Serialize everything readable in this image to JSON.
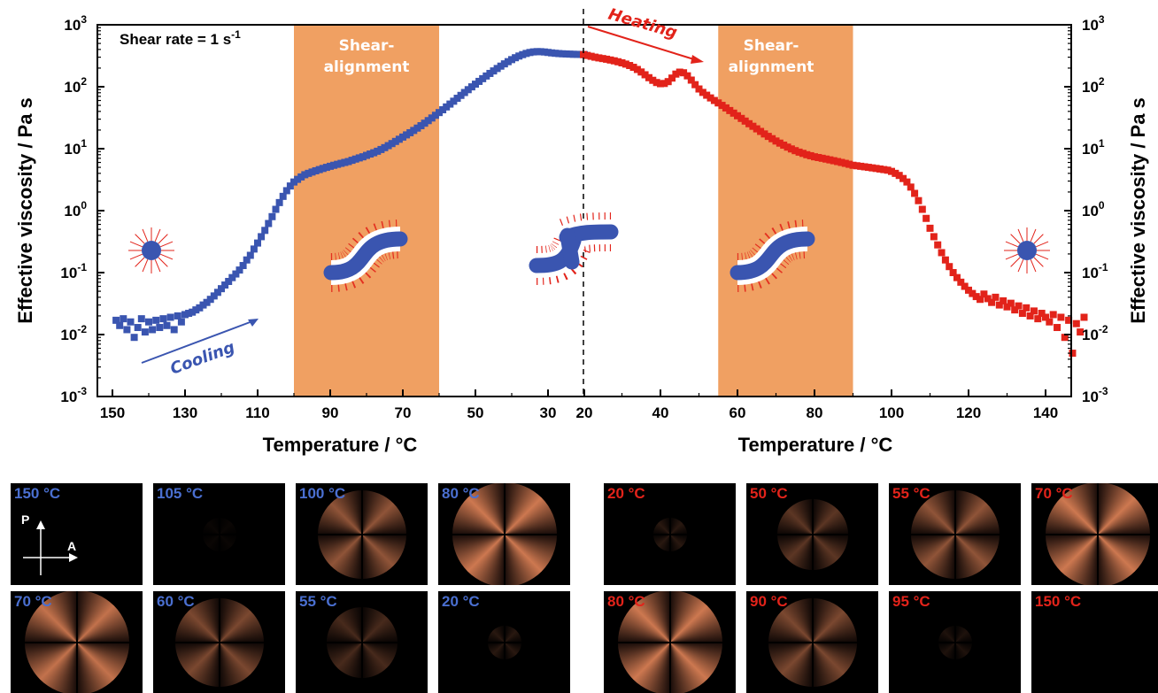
{
  "chart_data": {
    "type": "scatter",
    "ylabel_left": "Effective viscosity / Pa s",
    "ylabel_right": "Effective viscosity / Pa s",
    "xlabel_cooling": "Temperature / °C",
    "xlabel_heating": "Temperature / °C",
    "yscale": "log",
    "ylim": [
      0.001,
      1000
    ],
    "y_ticks": [
      {
        "base": "10",
        "exp": "3"
      },
      {
        "base": "10",
        "exp": "2"
      },
      {
        "base": "10",
        "exp": "1"
      },
      {
        "base": "10",
        "exp": "0"
      },
      {
        "base": "10",
        "exp": "-1"
      },
      {
        "base": "10",
        "exp": "-2"
      },
      {
        "base": "10",
        "exp": "-3"
      }
    ],
    "x_ticks_cooling": [
      "150",
      "130",
      "110",
      "90",
      "70",
      "50",
      "30",
      "20"
    ],
    "x_ticks_heating": [
      "40",
      "60",
      "80",
      "100",
      "120",
      "140"
    ],
    "annotations": {
      "shear_rate": "Shear rate = 1 s",
      "shear_rate_sup": "-1",
      "shear_alignment_left": [
        "Shear-",
        "alignment"
      ],
      "shear_alignment_right": [
        "Shear-",
        "alignment"
      ],
      "cooling": "Cooling",
      "heating": "Heating"
    },
    "colors": {
      "cooling": "#3a55b0",
      "heating": "#e2231a",
      "shear_region": "#f0a062",
      "axis": "#000000"
    },
    "shear_regions": [
      {
        "series": "cooling",
        "from_T": 100,
        "to_T": 60
      },
      {
        "series": "heating",
        "from_T": 55,
        "to_T": 90
      }
    ],
    "series": [
      {
        "id": "cooling",
        "temperature_direction": "decreasing",
        "points": [
          [
            149,
            0.017
          ],
          [
            148,
            0.014
          ],
          [
            147,
            0.018
          ],
          [
            146,
            0.012
          ],
          [
            145,
            0.016
          ],
          [
            144,
            0.009
          ],
          [
            143,
            0.013
          ],
          [
            142,
            0.018
          ],
          [
            141,
            0.011
          ],
          [
            140,
            0.016
          ],
          [
            139,
            0.012
          ],
          [
            138,
            0.017
          ],
          [
            137,
            0.013
          ],
          [
            136,
            0.018
          ],
          [
            135,
            0.014
          ],
          [
            134,
            0.019
          ],
          [
            133,
            0.012
          ],
          [
            132,
            0.02
          ],
          [
            131,
            0.016
          ],
          [
            130,
            0.021
          ],
          [
            129,
            0.022
          ],
          [
            128,
            0.023
          ],
          [
            127,
            0.025
          ],
          [
            126,
            0.027
          ],
          [
            125,
            0.03
          ],
          [
            124,
            0.033
          ],
          [
            123,
            0.037
          ],
          [
            122,
            0.042
          ],
          [
            121,
            0.048
          ],
          [
            120,
            0.055
          ],
          [
            119,
            0.063
          ],
          [
            118,
            0.072
          ],
          [
            117,
            0.083
          ],
          [
            116,
            0.095
          ],
          [
            115,
            0.11
          ],
          [
            114,
            0.13
          ],
          [
            113,
            0.16
          ],
          [
            112,
            0.19
          ],
          [
            111,
            0.24
          ],
          [
            110,
            0.3
          ],
          [
            109,
            0.38
          ],
          [
            108,
            0.48
          ],
          [
            107,
            0.62
          ],
          [
            106,
            0.8
          ],
          [
            105,
            1.05
          ],
          [
            104,
            1.35
          ],
          [
            103,
            1.7
          ],
          [
            102,
            2.1
          ],
          [
            101,
            2.5
          ],
          [
            100,
            2.9
          ],
          [
            99,
            3.2
          ],
          [
            98,
            3.5
          ],
          [
            97,
            3.8
          ],
          [
            96,
            4.0
          ],
          [
            95,
            4.2
          ],
          [
            94,
            4.4
          ],
          [
            93,
            4.6
          ],
          [
            92,
            4.8
          ],
          [
            91,
            5.0
          ],
          [
            90,
            5.2
          ],
          [
            89,
            5.4
          ],
          [
            88,
            5.6
          ],
          [
            87,
            5.8
          ],
          [
            86,
            6.0
          ],
          [
            85,
            6.2
          ],
          [
            84,
            6.5
          ],
          [
            83,
            6.8
          ],
          [
            82,
            7.1
          ],
          [
            81,
            7.4
          ],
          [
            80,
            7.8
          ],
          [
            79,
            8.2
          ],
          [
            78,
            8.6
          ],
          [
            77,
            9.1
          ],
          [
            76,
            9.7
          ],
          [
            75,
            10.4
          ],
          [
            74,
            11.2
          ],
          [
            73,
            12.1
          ],
          [
            72,
            13.1
          ],
          [
            71,
            14.2
          ],
          [
            70,
            15.4
          ],
          [
            69,
            16.7
          ],
          [
            68,
            18.1
          ],
          [
            67,
            19.7
          ],
          [
            66,
            21.5
          ],
          [
            65,
            23.5
          ],
          [
            64,
            25.8
          ],
          [
            63,
            28.4
          ],
          [
            62,
            31.3
          ],
          [
            61,
            34.6
          ],
          [
            60,
            38.3
          ],
          [
            59,
            42.5
          ],
          [
            58,
            47.2
          ],
          [
            57,
            52.5
          ],
          [
            56,
            58.4
          ],
          [
            55,
            65.1
          ],
          [
            54,
            72.5
          ],
          [
            53,
            80.7
          ],
          [
            52,
            89.7
          ],
          [
            51,
            99.6
          ],
          [
            50,
            110
          ],
          [
            49,
            122
          ],
          [
            48,
            135
          ],
          [
            47,
            149
          ],
          [
            46,
            164
          ],
          [
            45,
            180
          ],
          [
            44,
            197
          ],
          [
            43,
            215
          ],
          [
            42,
            234
          ],
          [
            41,
            254
          ],
          [
            40,
            274
          ],
          [
            39,
            294
          ],
          [
            38,
            313
          ],
          [
            37,
            330
          ],
          [
            36,
            345
          ],
          [
            35,
            357
          ],
          [
            34,
            365
          ],
          [
            33,
            369
          ],
          [
            32,
            368
          ],
          [
            31,
            364
          ],
          [
            30,
            358
          ],
          [
            29,
            352
          ],
          [
            28,
            347
          ],
          [
            27,
            343
          ],
          [
            26,
            340
          ],
          [
            25,
            338
          ],
          [
            24,
            336
          ],
          [
            23,
            334
          ],
          [
            22,
            333
          ],
          [
            21,
            332
          ],
          [
            20,
            330
          ]
        ]
      },
      {
        "id": "heating",
        "temperature_direction": "increasing",
        "points": [
          [
            20,
            330
          ],
          [
            21,
            320
          ],
          [
            22,
            310
          ],
          [
            23,
            300
          ],
          [
            24,
            292
          ],
          [
            25,
            285
          ],
          [
            26,
            278
          ],
          [
            27,
            270
          ],
          [
            28,
            262
          ],
          [
            29,
            253
          ],
          [
            30,
            243
          ],
          [
            31,
            232
          ],
          [
            32,
            220
          ],
          [
            33,
            206
          ],
          [
            34,
            190
          ],
          [
            35,
            173
          ],
          [
            36,
            156
          ],
          [
            37,
            140
          ],
          [
            38,
            127
          ],
          [
            39,
            117
          ],
          [
            40,
            112
          ],
          [
            41,
            113
          ],
          [
            42,
            121
          ],
          [
            43,
            138
          ],
          [
            44,
            160
          ],
          [
            45,
            172
          ],
          [
            46,
            168
          ],
          [
            47,
            150
          ],
          [
            48,
            128
          ],
          [
            49,
            108
          ],
          [
            50,
            92
          ],
          [
            51,
            81
          ],
          [
            52,
            73
          ],
          [
            53,
            66
          ],
          [
            54,
            60
          ],
          [
            55,
            54.8
          ],
          [
            56,
            50
          ],
          [
            57,
            45.5
          ],
          [
            58,
            41.3
          ],
          [
            59,
            37.5
          ],
          [
            60,
            34
          ],
          [
            61,
            30.8
          ],
          [
            62,
            27.9
          ],
          [
            63,
            25.3
          ],
          [
            64,
            23
          ],
          [
            65,
            20.9
          ],
          [
            66,
            19
          ],
          [
            67,
            17.3
          ],
          [
            68,
            15.8
          ],
          [
            69,
            14.5
          ],
          [
            70,
            13.3
          ],
          [
            71,
            12.3
          ],
          [
            72,
            11.4
          ],
          [
            73,
            10.6
          ],
          [
            74,
            9.9
          ],
          [
            75,
            9.3
          ],
          [
            76,
            8.8
          ],
          [
            77,
            8.4
          ],
          [
            78,
            8.0
          ],
          [
            79,
            7.7
          ],
          [
            80,
            7.4
          ],
          [
            81,
            7.2
          ],
          [
            82,
            7.0
          ],
          [
            83,
            6.8
          ],
          [
            84,
            6.6
          ],
          [
            85,
            6.4
          ],
          [
            86,
            6.2
          ],
          [
            87,
            6.0
          ],
          [
            88,
            5.8
          ],
          [
            89,
            5.6
          ],
          [
            90,
            5.4
          ],
          [
            91,
            5.3
          ],
          [
            92,
            5.2
          ],
          [
            93,
            5.1
          ],
          [
            94,
            5.0
          ],
          [
            95,
            4.9
          ],
          [
            96,
            4.8
          ],
          [
            97,
            4.7
          ],
          [
            98,
            4.6
          ],
          [
            99,
            4.5
          ],
          [
            100,
            4.3
          ],
          [
            101,
            4.0
          ],
          [
            102,
            3.7
          ],
          [
            103,
            3.3
          ],
          [
            104,
            2.9
          ],
          [
            105,
            2.4
          ],
          [
            106,
            1.9
          ],
          [
            107,
            1.45
          ],
          [
            108,
            1.05
          ],
          [
            109,
            0.75
          ],
          [
            110,
            0.52
          ],
          [
            111,
            0.38
          ],
          [
            112,
            0.28
          ],
          [
            113,
            0.21
          ],
          [
            114,
            0.16
          ],
          [
            115,
            0.125
          ],
          [
            116,
            0.1
          ],
          [
            117,
            0.083
          ],
          [
            118,
            0.07
          ],
          [
            119,
            0.06
          ],
          [
            120,
            0.052
          ],
          [
            121,
            0.046
          ],
          [
            122,
            0.041
          ],
          [
            123,
            0.037
          ],
          [
            124,
            0.045
          ],
          [
            125,
            0.038
          ],
          [
            126,
            0.033
          ],
          [
            127,
            0.04
          ],
          [
            128,
            0.03
          ],
          [
            129,
            0.035
          ],
          [
            130,
            0.028
          ],
          [
            131,
            0.032
          ],
          [
            132,
            0.025
          ],
          [
            133,
            0.029
          ],
          [
            134,
            0.022
          ],
          [
            135,
            0.027
          ],
          [
            136,
            0.02
          ],
          [
            137,
            0.024
          ],
          [
            138,
            0.018
          ],
          [
            139,
            0.022
          ],
          [
            140,
            0.019
          ],
          [
            141,
            0.016
          ],
          [
            142,
            0.021
          ],
          [
            143,
            0.013
          ],
          [
            144,
            0.019
          ],
          [
            145,
            0.009
          ],
          [
            146,
            0.017
          ],
          [
            147,
            0.005
          ],
          [
            148,
            0.015
          ],
          [
            149,
            0.011
          ],
          [
            150,
            0.019
          ]
        ]
      }
    ]
  },
  "cooling_panels": [
    {
      "label": "150 °C",
      "pattern": 0.0
    },
    {
      "label": "105 °C",
      "pattern": 0.05
    },
    {
      "label": "100 °C",
      "pattern": 0.7
    },
    {
      "label": "80 °C",
      "pattern": 1.0
    },
    {
      "label": "70 °C",
      "pattern": 0.95
    },
    {
      "label": "60 °C",
      "pattern": 0.6
    },
    {
      "label": "55 °C",
      "pattern": 0.35
    },
    {
      "label": "20 °C",
      "pattern": 0.2
    }
  ],
  "heating_panels": [
    {
      "label": "20 °C",
      "pattern": 0.2
    },
    {
      "label": "50 °C",
      "pattern": 0.45
    },
    {
      "label": "55 °C",
      "pattern": 0.7
    },
    {
      "label": "70 °C",
      "pattern": 1.0
    },
    {
      "label": "80 °C",
      "pattern": 1.0
    },
    {
      "label": "90 °C",
      "pattern": 0.6
    },
    {
      "label": "95 °C",
      "pattern": 0.15
    },
    {
      "label": "150 °C",
      "pattern": 0.0
    }
  ],
  "polarizer_labels": {
    "polarizer": "P",
    "analyzer": "A"
  }
}
